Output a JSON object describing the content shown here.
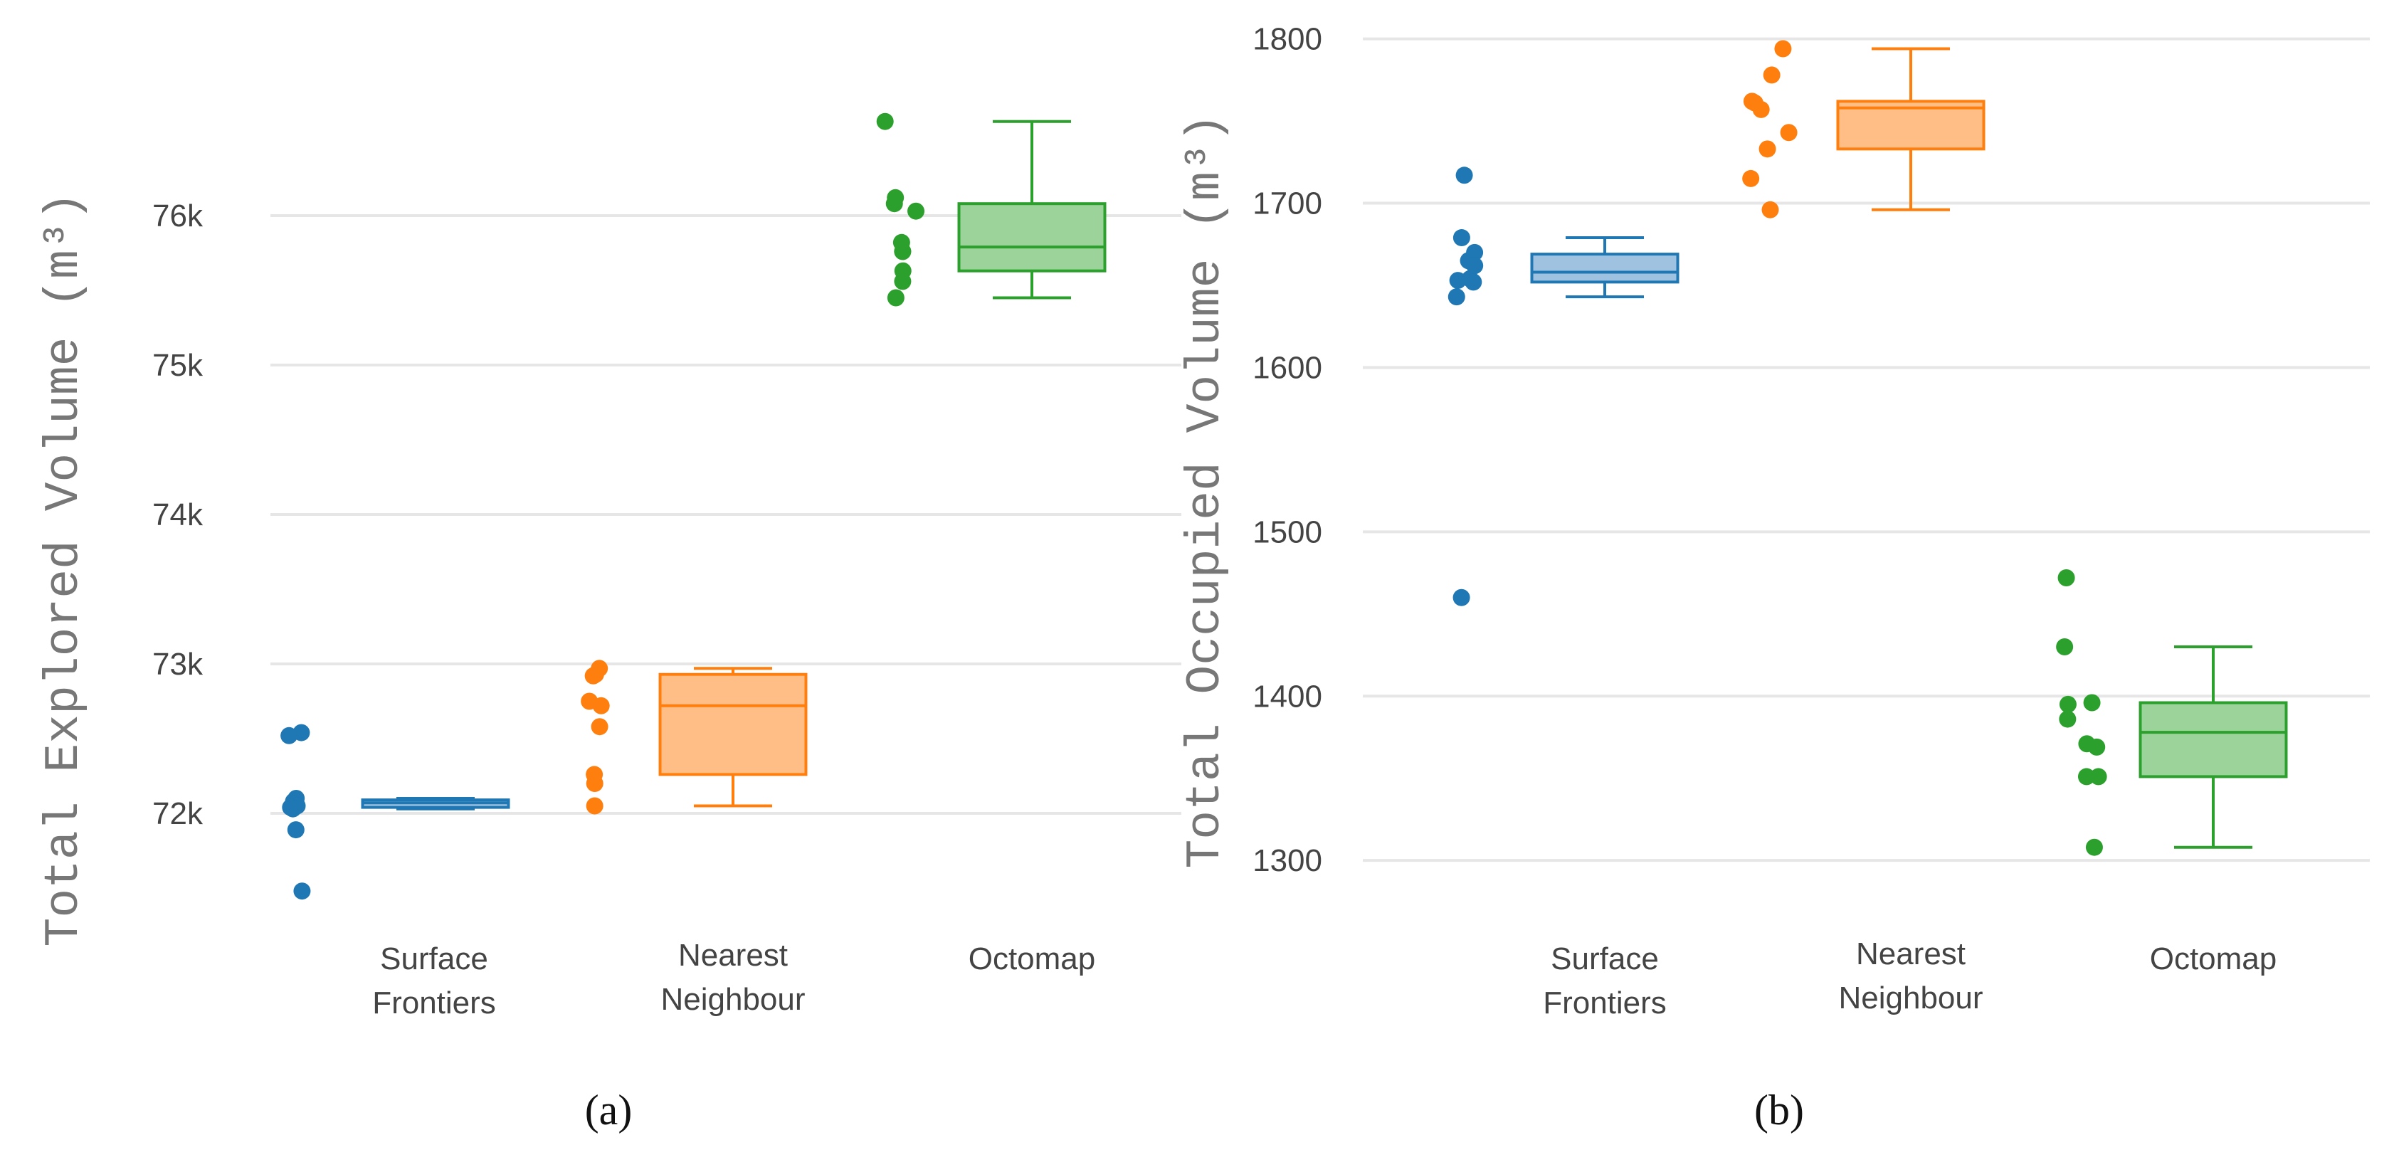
{
  "chart_data": [
    {
      "type": "box",
      "panel_caption": "(a)",
      "ylabel": "Total Explored Volume",
      "ylabel_unit": "(m³)",
      "ylim": [
        71300,
        77300
      ],
      "yticks": [
        72000,
        73000,
        74000,
        75000,
        76000
      ],
      "ytick_labels": [
        "72k",
        "73k",
        "74k",
        "75k",
        "76k"
      ],
      "categories": [
        "Surface\nFrontiers",
        "Nearest\nNeighbour",
        "Octomap"
      ],
      "series": [
        {
          "name": "Surface Frontiers",
          "color": "#1f77b4",
          "fill": "#9ec2e0",
          "points": [
            72540,
            72520,
            72100,
            72080,
            72060,
            72050,
            72040,
            72030,
            71890,
            71480
          ],
          "box": {
            "q1": 72040,
            "median": 72070,
            "q3": 72090,
            "whisker_low": 72030,
            "whisker_high": 72100
          }
        },
        {
          "name": "Nearest Neighbour",
          "color": "#ff7f0e",
          "fill": "#ffbe86",
          "points": [
            72970,
            72930,
            72920,
            72750,
            72720,
            72580,
            72260,
            72200,
            72050
          ],
          "box": {
            "q1": 72260,
            "median": 72720,
            "q3": 72930,
            "whisker_low": 72050,
            "whisker_high": 72970
          }
        },
        {
          "name": "Octomap",
          "color": "#2ca02c",
          "fill": "#9bd39b",
          "points": [
            76630,
            76120,
            76080,
            76030,
            75820,
            75760,
            75760,
            75630,
            75560,
            75450
          ],
          "box": {
            "q1": 75630,
            "median": 75790,
            "q3": 76080,
            "whisker_low": 75450,
            "whisker_high": 76630
          }
        }
      ]
    },
    {
      "type": "box",
      "panel_caption": "(b)",
      "ylabel": "Total Occupied Volume",
      "ylabel_unit": "(m³)",
      "ylim": [
        1265,
        1815
      ],
      "yticks": [
        1300,
        1400,
        1500,
        1600,
        1700,
        1800
      ],
      "ytick_labels": [
        "1300",
        "1400",
        "1500",
        "1600",
        "1700",
        "1800"
      ],
      "categories": [
        "Surface\nFrontiers",
        "Nearest\nNeighbour",
        "Octomap"
      ],
      "series": [
        {
          "name": "Surface Frontiers",
          "color": "#1f77b4",
          "fill": "#9ec2e0",
          "points": [
            1717,
            1679,
            1670,
            1665,
            1662,
            1654,
            1653,
            1652,
            1643,
            1460
          ],
          "box": {
            "q1": 1652,
            "median": 1658,
            "q3": 1669,
            "whisker_low": 1643,
            "whisker_high": 1679
          }
        },
        {
          "name": "Nearest Neighbour",
          "color": "#ff7f0e",
          "fill": "#ffbe86",
          "points": [
            1794,
            1778,
            1762,
            1761,
            1757,
            1743,
            1733,
            1715,
            1696
          ],
          "box": {
            "q1": 1733,
            "median": 1758,
            "q3": 1762,
            "whisker_low": 1696,
            "whisker_high": 1794
          }
        },
        {
          "name": "Octomap",
          "color": "#2ca02c",
          "fill": "#9bd39b",
          "points": [
            1472,
            1430,
            1396,
            1395,
            1386,
            1371,
            1369,
            1351,
            1351,
            1308
          ],
          "box": {
            "q1": 1351,
            "median": 1378,
            "q3": 1396,
            "whisker_low": 1308,
            "whisker_high": 1430
          }
        }
      ]
    }
  ]
}
